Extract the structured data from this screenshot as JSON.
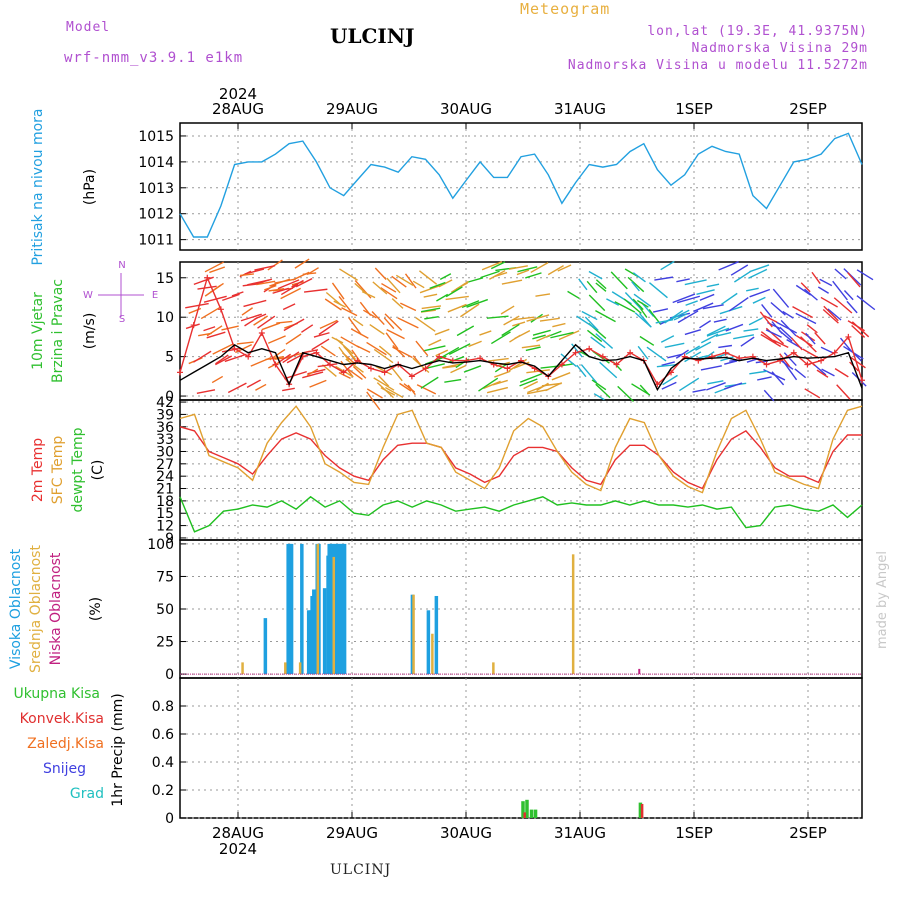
{
  "header": {
    "model_label": "Model",
    "model_name": "wrf-nmm_v3.9.1 e1km",
    "station": "ULCINJ",
    "product": "Meteogram",
    "lonlat": "lon,lat (19.3E, 41.9375N)",
    "elevation": "Nadmorska Visina 29m",
    "model_elevation": "Nadmorska Visina u modelu 11.5272m",
    "footer_station": "ULCINJ",
    "watermark": "made by Angel"
  },
  "colors": {
    "pressure": "#22a0e0",
    "temp2m": "#e83030",
    "sfc": "#e0a030",
    "dewpt": "#20c020",
    "high_cloud": "#1ea0e0",
    "mid_cloud": "#e0b040",
    "low_cloud": "#c02080",
    "total_precip": "#30c030",
    "convective": "#e03030",
    "frozen": "#f07020",
    "snow": "#4040e0",
    "hail": "#20c0c0"
  },
  "chart_data": {
    "x_axis": {
      "top_year": "2024",
      "bottom_year": "2024",
      "date_ticks": [
        "28AUG",
        "29AUG",
        "30AUG",
        "31AUG",
        "1SEP",
        "2SEP"
      ]
    },
    "panels": [
      {
        "id": "pressure",
        "type": "line",
        "ylabel": [
          "Pritisak na nivou mora",
          "(hPa)"
        ],
        "ylim": [
          1010.6,
          1015.5
        ],
        "yticks": [
          1011,
          1012,
          1013,
          1014,
          1015
        ],
        "series": [
          {
            "color_key": "pressure",
            "values": [
              1012.0,
              1011.1,
              1011.1,
              1012.3,
              1013.9,
              1014.0,
              1014.0,
              1014.3,
              1014.7,
              1014.8,
              1014.0,
              1013.0,
              1012.7,
              1013.3,
              1013.9,
              1013.8,
              1013.6,
              1014.2,
              1014.1,
              1013.5,
              1012.6,
              1013.3,
              1014.0,
              1013.4,
              1013.4,
              1014.2,
              1014.3,
              1013.5,
              1012.4,
              1013.2,
              1013.9,
              1013.8,
              1013.9,
              1014.4,
              1014.7,
              1013.7,
              1013.1,
              1013.5,
              1014.3,
              1014.6,
              1014.4,
              1014.3,
              1012.7,
              1012.2,
              1013.1,
              1014.0,
              1014.1,
              1014.3,
              1014.9,
              1015.1,
              1013.9
            ]
          }
        ]
      },
      {
        "id": "wind",
        "type": "line",
        "ylabel": [
          "10m Vjetar",
          "Brzina i Pravac",
          "(m/s)"
        ],
        "compass": {
          "north": "N",
          "south": "S",
          "west": "W",
          "east": "E"
        },
        "ylim": [
          -0.5,
          17
        ],
        "yticks": [
          0,
          5,
          10,
          15
        ],
        "series": [
          {
            "name": "wind speed",
            "color_key": "temp2m",
            "values": [
              3.0,
              9.0,
              15.0,
              11.0,
              6.0,
              5.0,
              8.0,
              4.0,
              1.5,
              5.0,
              5.5,
              4.0,
              3.0,
              4.5,
              3.5,
              3.0,
              4.0,
              2.5,
              3.5,
              5.0,
              4.5,
              4.5,
              4.8,
              4.0,
              3.5,
              4.5,
              3.5,
              2.5,
              4.0,
              5.5,
              6.0,
              5.0,
              4.0,
              5.5,
              4.5,
              1.5,
              3.0,
              5.0,
              4.5,
              5.0,
              5.5,
              4.8,
              5.0,
              4.0,
              4.5,
              5.5,
              4.0,
              4.5,
              5.5,
              7.5,
              2.0
            ]
          },
          {
            "name": "wind mean",
            "color_key": "black",
            "values": [
              2.0,
              3.0,
              4.0,
              5.0,
              6.5,
              5.5,
              6.0,
              5.5,
              1.5,
              5.5,
              5.0,
              4.5,
              4.0,
              4.2,
              4.0,
              3.5,
              4.0,
              3.5,
              4.0,
              4.5,
              4.2,
              4.3,
              4.5,
              4.2,
              4.0,
              4.3,
              3.8,
              2.5,
              4.5,
              6.5,
              5.0,
              4.5,
              4.6,
              5.0,
              4.5,
              0.8,
              3.5,
              4.8,
              4.7,
              4.8,
              4.9,
              4.5,
              4.8,
              4.5,
              4.7,
              5.0,
              4.8,
              4.9,
              5.0,
              5.5,
              1.0
            ]
          }
        ]
      },
      {
        "id": "temperature",
        "type": "line",
        "ylabel": [
          "2m Temp",
          "SFC Temp",
          "dewpt Temp",
          "(C)"
        ],
        "ylim": [
          8.5,
          42.5
        ],
        "yticks": [
          9,
          12,
          15,
          18,
          21,
          24,
          27,
          30,
          33,
          36,
          39,
          42
        ],
        "series": [
          {
            "name": "2m Temp",
            "color_key": "temp2m",
            "values": [
              36.0,
              35.0,
              30.0,
              28.5,
              27.0,
              24.5,
              29.0,
              33.0,
              34.5,
              33.0,
              29.0,
              26.0,
              24.0,
              23.0,
              28.0,
              31.5,
              32.0,
              32.0,
              31.0,
              26.0,
              24.5,
              22.5,
              24.0,
              29.0,
              31.0,
              31.0,
              30.0,
              26.0,
              23.0,
              22.0,
              28.0,
              31.5,
              31.5,
              29.0,
              25.0,
              22.5,
              21.0,
              28.0,
              33.0,
              35.0,
              31.0,
              26.0,
              24.0,
              24.0,
              22.5,
              30.0,
              34.0,
              34.0
            ]
          },
          {
            "name": "SFC Temp",
            "color_key": "sfc",
            "values": [
              38.0,
              39.0,
              29.0,
              27.5,
              26.0,
              23.0,
              32.0,
              37.0,
              41.0,
              36.0,
              27.0,
              25.0,
              22.5,
              22.0,
              31.0,
              39.0,
              40.0,
              32.0,
              31.0,
              25.0,
              23.0,
              21.0,
              26.0,
              35.0,
              38.0,
              36.0,
              30.0,
              25.0,
              22.0,
              20.5,
              31.0,
              38.0,
              37.0,
              29.0,
              24.0,
              21.5,
              20.0,
              30.0,
              38.0,
              40.0,
              33.0,
              25.0,
              23.5,
              22.0,
              21.0,
              33.0,
              40.0,
              41.0
            ]
          },
          {
            "name": "dewpt Temp",
            "color_key": "dewpt",
            "values": [
              19.0,
              10.5,
              12.0,
              15.5,
              16.0,
              17.0,
              16.5,
              18.0,
              16.0,
              19.0,
              16.5,
              18.0,
              15.0,
              14.5,
              17.0,
              18.0,
              16.5,
              18.0,
              17.0,
              15.5,
              16.0,
              16.5,
              15.5,
              17.0,
              18.0,
              19.0,
              17.0,
              17.5,
              17.0,
              17.0,
              18.0,
              17.0,
              18.0,
              17.0,
              17.0,
              16.5,
              17.0,
              16.0,
              16.5,
              11.5,
              12.0,
              16.5,
              17.0,
              16.0,
              15.5,
              17.0,
              14.0,
              17.0
            ]
          }
        ]
      },
      {
        "id": "cloud",
        "type": "bar",
        "ylabel": [
          "Visoka Oblacnost",
          "Srednja Oblacnost",
          "Niska Oblacnost",
          "(%)"
        ],
        "ylim": [
          -3,
          103
        ],
        "yticks": [
          0,
          25,
          50,
          75,
          100
        ],
        "high_cloud_bars": [
          [
            0.24,
            43
          ],
          [
            0.44,
            100
          ],
          [
            0.455,
            100
          ],
          [
            0.47,
            100
          ],
          [
            0.56,
            100
          ],
          [
            0.62,
            49
          ],
          [
            0.635,
            49
          ],
          [
            0.65,
            60
          ],
          [
            0.665,
            65
          ],
          [
            0.68,
            52
          ],
          [
            0.695,
            100
          ],
          [
            0.71,
            100
          ],
          [
            0.76,
            66
          ],
          [
            0.79,
            91
          ],
          [
            0.8,
            100
          ],
          [
            0.815,
            100
          ],
          [
            0.83,
            100
          ],
          [
            0.845,
            100
          ],
          [
            0.86,
            100
          ],
          [
            0.875,
            100
          ],
          [
            0.89,
            100
          ],
          [
            0.905,
            100
          ],
          [
            0.92,
            100
          ],
          [
            0.935,
            100
          ],
          [
            1.53,
            61
          ],
          [
            1.67,
            49
          ],
          [
            1.74,
            60
          ]
        ],
        "mid_cloud_bars": [
          [
            0.04,
            9
          ],
          [
            0.415,
            9
          ],
          [
            0.545,
            9
          ],
          [
            0.7,
            100
          ],
          [
            0.84,
            90
          ],
          [
            1.54,
            61
          ],
          [
            1.705,
            31
          ],
          [
            2.24,
            9
          ],
          [
            2.94,
            92
          ]
        ],
        "low_cloud_bars": [
          [
            3.52,
            4
          ]
        ]
      },
      {
        "id": "precip",
        "type": "bar",
        "ylabel": [
          "1hr Precip (mm)"
        ],
        "legend": [
          "Ukupna Kisa",
          "Konvek.Kisa",
          "Zaledj.Kisa",
          "Snijeg",
          "Grad"
        ],
        "ylim": [
          0,
          1.0
        ],
        "yticks": [
          0,
          0.2,
          0.4,
          0.6,
          0.8
        ],
        "total_bars": [
          [
            2.5,
            0.12
          ],
          [
            2.535,
            0.13
          ],
          [
            2.575,
            0.06
          ],
          [
            2.61,
            0.06
          ],
          [
            3.53,
            0.11
          ]
        ],
        "convective_bars": [
          [
            2.515,
            0.04
          ],
          [
            3.545,
            0.1
          ]
        ]
      }
    ]
  }
}
